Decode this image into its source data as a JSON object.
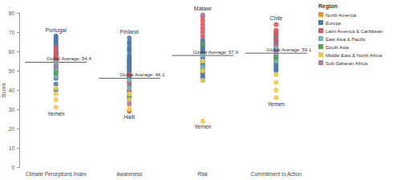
{
  "chart_data": {
    "type": "scatter",
    "ylabel": "Score",
    "categories": [
      "Climate Perceptions Index",
      "Awareness",
      "Risk",
      "Commitment to Action"
    ],
    "ylim": [
      0,
      80
    ],
    "yticks": [
      0,
      10,
      20,
      30,
      40,
      50,
      60,
      70,
      80
    ],
    "grid": false,
    "legend": "top-right",
    "legend_title": "Region",
    "series": [
      {
        "name": "North America",
        "color": "#f28e2b",
        "values": [
          [
            57,
            59
          ],
          [
            52,
            55
          ],
          [
            60,
            62
          ],
          [
            58,
            61
          ]
        ]
      },
      {
        "name": "Europe",
        "color": "#4e79a7",
        "values": [
          [
            68,
            67,
            66,
            65,
            64,
            63,
            62,
            61,
            60,
            59,
            58,
            57,
            56,
            55,
            54,
            53,
            52,
            51,
            50,
            48,
            46,
            43,
            40
          ],
          [
            67,
            65,
            64,
            62,
            61,
            60,
            58,
            57,
            56,
            55,
            54,
            53,
            52,
            51,
            50,
            49,
            48,
            47,
            46,
            44,
            42,
            39,
            36
          ],
          [
            66,
            65,
            64,
            63,
            62,
            61,
            60,
            59,
            58,
            57,
            56,
            55,
            54,
            53,
            52,
            51,
            50,
            49,
            48,
            47,
            46,
            45
          ],
          [
            70,
            69,
            68,
            67,
            66,
            65,
            64,
            63,
            62,
            61,
            60,
            59,
            58,
            57,
            56,
            55,
            54,
            53,
            52,
            51,
            50
          ]
        ]
      },
      {
        "name": "Latin America & Caribbean",
        "color": "#e15759",
        "values": [
          [
            62,
            60,
            58,
            56,
            55
          ],
          [
            48,
            44,
            40,
            35,
            29
          ],
          [
            78,
            76,
            74,
            72,
            70,
            68
          ],
          [
            74,
            71,
            69,
            66,
            63
          ]
        ]
      },
      {
        "name": "East Asia & Pacific",
        "color": "#76b7b2",
        "values": [
          [
            54,
            50,
            47
          ],
          [
            45,
            41,
            38
          ],
          [
            58,
            55,
            52
          ],
          [
            62,
            58,
            55
          ]
        ]
      },
      {
        "name": "South Asia",
        "color": "#59a14f",
        "values": [
          [
            49
          ],
          [
            37
          ],
          [
            64
          ],
          [
            57
          ]
        ]
      },
      {
        "name": "Middle East & North Africa",
        "color": "#edc948",
        "values": [
          [
            41,
            38,
            35,
            31
          ],
          [
            38,
            35,
            32,
            30
          ],
          [
            55,
            50,
            45,
            24
          ],
          [
            48,
            44,
            40,
            36
          ]
        ]
      },
      {
        "name": "Sub-Saharan Africa",
        "color": "#b07aa1",
        "values": [
          [
            52
          ],
          [
            33
          ],
          [
            79
          ],
          [
            60
          ]
        ]
      }
    ],
    "averages": [
      {
        "category": "Climate Perceptions Index",
        "value": 54.4,
        "label": "Global Average: 54,4"
      },
      {
        "category": "Awareness",
        "value": 46.1,
        "label": "Global Average: 46,1"
      },
      {
        "category": "Risk",
        "value": 57.9,
        "label": "Global Average: 57,9"
      },
      {
        "category": "Commitment to Action",
        "value": 59.1,
        "label": "Global Average: 59,1"
      }
    ],
    "annotations": [
      {
        "category": "Climate Perceptions Index",
        "text": "Portugal",
        "value": 68
      },
      {
        "category": "Climate Perceptions Index",
        "text": "Yemen",
        "value": 31
      },
      {
        "category": "Awareness",
        "text": "Finland",
        "value": 67
      },
      {
        "category": "Awareness",
        "text": "Haiti",
        "value": 29
      },
      {
        "category": "Risk",
        "text": "Malawi",
        "value": 79
      },
      {
        "category": "Risk",
        "text": "Yemen",
        "value": 24
      },
      {
        "category": "Commitment to Action",
        "text": "Chile",
        "value": 74
      },
      {
        "category": "Commitment to Action",
        "text": "Yemen",
        "value": 36
      }
    ]
  }
}
